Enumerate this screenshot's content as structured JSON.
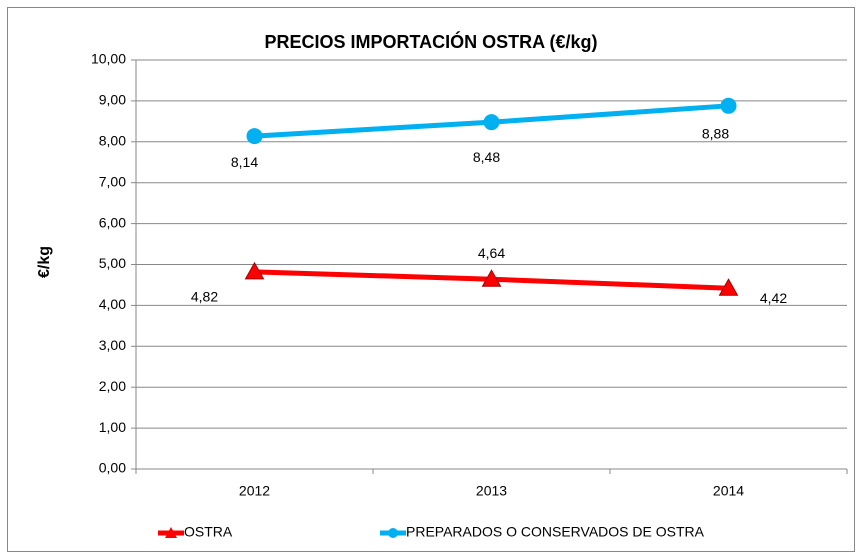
{
  "chart_data": {
    "type": "line",
    "title": "PRECIOS IMPORTACIÓN OSTRA (€/kg)",
    "y_label": "€/kg",
    "categories": [
      "2012",
      "2013",
      "2014"
    ],
    "series": [
      {
        "name": "OSTRA",
        "color": "#ff0000",
        "marker": "triangle",
        "values": [
          4.82,
          4.64,
          4.42
        ],
        "value_labels": [
          "4,82",
          "4,64",
          "4,42"
        ]
      },
      {
        "name": "PREPARADOS O CONSERVADOS DE OSTRA",
        "color": "#00b0f0",
        "marker": "circle",
        "values": [
          8.14,
          8.48,
          8.88
        ],
        "value_labels": [
          "8,14",
          "8,48",
          "8,88"
        ]
      }
    ],
    "ylim": [
      0,
      10
    ],
    "yticks": [
      {
        "value": 0,
        "label": "0,00"
      },
      {
        "value": 1,
        "label": "1,00"
      },
      {
        "value": 2,
        "label": "2,00"
      },
      {
        "value": 3,
        "label": "3,00"
      },
      {
        "value": 4,
        "label": "4,00"
      },
      {
        "value": 5,
        "label": "5,00"
      },
      {
        "value": 6,
        "label": "6,00"
      },
      {
        "value": 7,
        "label": "7,00"
      },
      {
        "value": 8,
        "label": "8,00"
      },
      {
        "value": 9,
        "label": "9,00"
      },
      {
        "value": 10,
        "label": "10,00"
      }
    ],
    "grid": true,
    "legend": "bottom"
  }
}
